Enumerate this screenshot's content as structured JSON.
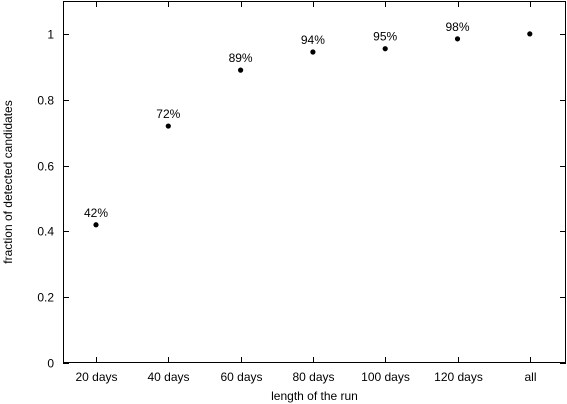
{
  "chart_data": {
    "type": "scatter",
    "title": "",
    "xlabel": "length of the run",
    "ylabel": "fraction of detected candidates",
    "categories": [
      "20 days",
      "40 days",
      "60 days",
      "80 days",
      "100 days",
      "120 days",
      "all"
    ],
    "values": [
      0.42,
      0.72,
      0.89,
      0.945,
      0.955,
      0.985,
      1.0
    ],
    "data_labels": [
      "42%",
      "72%",
      "89%",
      "94%",
      "95%",
      "98%",
      ""
    ],
    "ylim": [
      0,
      1.1
    ],
    "yticks": [
      0,
      0.2,
      0.4,
      0.6,
      0.8,
      1
    ],
    "ytick_labels": [
      "0",
      "0.2",
      "0.4",
      "0.6",
      "0.8",
      "1"
    ],
    "grid": false,
    "legend": "none",
    "marker_color": "#000000"
  }
}
